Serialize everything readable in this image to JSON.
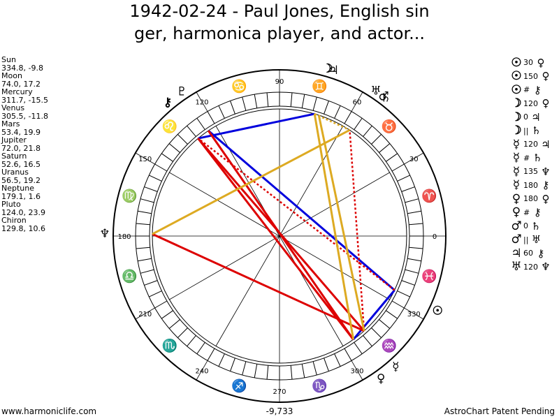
{
  "title_line1": "1942-02-24 - Paul Jones, English sin",
  "title_line2": "ger, harmonica player, and actor...",
  "planets": [
    {
      "name": "Sun",
      "coords": "334.8, -9.8"
    },
    {
      "name": "Moon",
      "coords": "74.0, 17.2"
    },
    {
      "name": "Mercury",
      "coords": "311.7, -15.5"
    },
    {
      "name": "Venus",
      "coords": "305.5, -11.8"
    },
    {
      "name": "Mars",
      "coords": "53.4, 19.9"
    },
    {
      "name": "Jupiter",
      "coords": "72.0, 21.8"
    },
    {
      "name": "Saturn",
      "coords": "52.6, 16.5"
    },
    {
      "name": "Uranus",
      "coords": "56.5, 19.2"
    },
    {
      "name": "Neptune",
      "coords": "179.1, 1.6"
    },
    {
      "name": "Pluto",
      "coords": "124.0, 23.9"
    },
    {
      "name": "Chiron",
      "coords": "129.8, 10.6"
    }
  ],
  "aspects": [
    {
      "p1": "☉",
      "value": "30",
      "p2": "♀"
    },
    {
      "p1": "☉",
      "value": "150",
      "p2": "♀"
    },
    {
      "p1": "☉",
      "value": "#",
      "p2": "⚷"
    },
    {
      "p1": "☽",
      "value": "120",
      "p2": "♀"
    },
    {
      "p1": "☽",
      "value": "0",
      "p2": "♃"
    },
    {
      "p1": "☽",
      "value": "||",
      "p2": "♄"
    },
    {
      "p1": "☿",
      "value": "120",
      "p2": "♃"
    },
    {
      "p1": "☿",
      "value": "#",
      "p2": "♄"
    },
    {
      "p1": "☿",
      "value": "135",
      "p2": "♆"
    },
    {
      "p1": "☿",
      "value": "180",
      "p2": "⚷"
    },
    {
      "p1": "♀",
      "value": "180",
      "p2": "♀"
    },
    {
      "p1": "♀",
      "value": "#",
      "p2": "⚷"
    },
    {
      "p1": "♂",
      "value": "0",
      "p2": "♄"
    },
    {
      "p1": "♂",
      "value": "||",
      "p2": "♅"
    },
    {
      "p1": "♃",
      "value": "60",
      "p2": "⚷"
    },
    {
      "p1": "♅",
      "value": "120",
      "p2": "♆"
    }
  ],
  "degree_labels": [
    "0",
    "30",
    "60",
    "90",
    "120",
    "150",
    "180",
    "210",
    "240",
    "270",
    "300",
    "330"
  ],
  "zodiac_signs": [
    "♈",
    "♉",
    "♊",
    "♋",
    "♌",
    "♍",
    "♎",
    "♏",
    "♐",
    "♑",
    "♒",
    "♓"
  ],
  "planet_glyphs": [
    {
      "glyph": "☉",
      "deg": 334.8,
      "color": "#000000"
    },
    {
      "glyph": "☽",
      "deg": 74.0,
      "color": "#000000"
    },
    {
      "glyph": "☿",
      "deg": 311.7,
      "color": "#000000"
    },
    {
      "glyph": "♀",
      "deg": 305.5,
      "color": "#000000"
    },
    {
      "glyph": "♂",
      "deg": 53.4,
      "color": "#000000"
    },
    {
      "glyph": "♃",
      "deg": 72.0,
      "color": "#000000"
    },
    {
      "glyph": "♄",
      "deg": 52.6,
      "color": "#000000"
    },
    {
      "glyph": "♅",
      "deg": 56.5,
      "color": "#000000"
    },
    {
      "glyph": "♆",
      "deg": 179.1,
      "color": "#000000"
    },
    {
      "glyph": "♇",
      "deg": 124.0,
      "color": "#000000"
    },
    {
      "glyph": "⚷",
      "deg": 129.8,
      "color": "#000000"
    }
  ],
  "aspect_lines": [
    {
      "from": 334.8,
      "to": 305.5,
      "color": "#0000dd",
      "dash": false
    },
    {
      "from": 334.8,
      "to": 124.0,
      "color": "#0000dd",
      "dash": false
    },
    {
      "from": 74.0,
      "to": 129.8,
      "color": "#0000dd",
      "dash": false
    },
    {
      "from": 311.7,
      "to": 129.8,
      "color": "#dd0000",
      "dash": false
    },
    {
      "from": 305.5,
      "to": 124.0,
      "color": "#dd0000",
      "dash": false
    },
    {
      "from": 305.5,
      "to": 129.8,
      "color": "#dd0000",
      "dash": false
    },
    {
      "from": 311.7,
      "to": 179.1,
      "color": "#dd0000",
      "dash": false
    },
    {
      "from": 334.8,
      "to": 129.8,
      "color": "#dd0000",
      "dash": true
    },
    {
      "from": 305.5,
      "to": 124.0,
      "color": "#dd0000",
      "dash": true
    },
    {
      "from": 311.7,
      "to": 56.5,
      "color": "#dd0000",
      "dash": true
    },
    {
      "from": 311.7,
      "to": 72.0,
      "color": "#ddaa22",
      "dash": false
    },
    {
      "from": 305.5,
      "to": 74.0,
      "color": "#ddaa22",
      "dash": false
    },
    {
      "from": 179.1,
      "to": 56.5,
      "color": "#ddaa22",
      "dash": false
    },
    {
      "from": 74.0,
      "to": 56.5,
      "color": "#ddaa22",
      "dash": true
    }
  ],
  "footer_left": "www.harmoniclife.com",
  "footer_center": "-9,733",
  "footer_right": "AstroChart Patent Pending"
}
